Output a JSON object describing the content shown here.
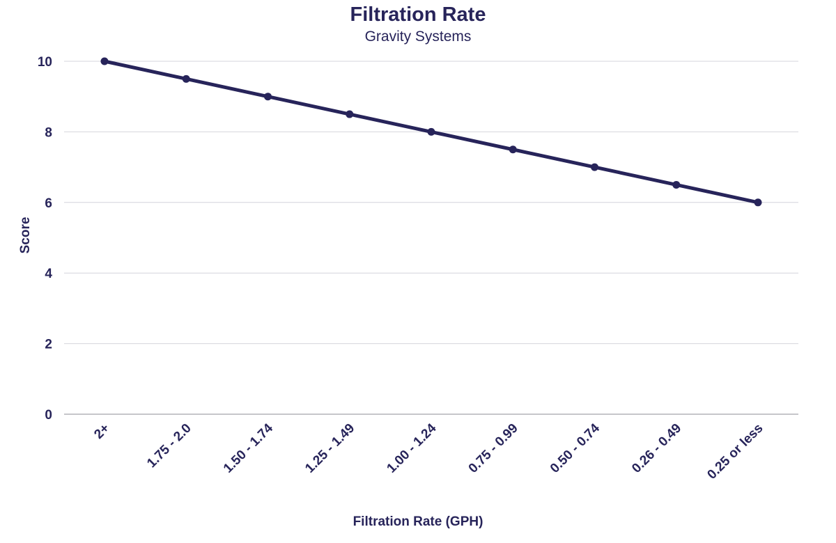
{
  "chart_data": {
    "type": "line",
    "title": "Filtration Rate",
    "subtitle": "Gravity Systems",
    "xlabel": "Filtration Rate (GPH)",
    "ylabel": "Score",
    "categories": [
      "2+",
      "1.75 - 2.0",
      "1.50 - 1.74",
      "1.25 - 1.49",
      "1.00 - 1.24",
      "0.75 - 0.99",
      "0.50 - 0.74",
      "0.26 - 0.49",
      "0.25 or less"
    ],
    "series": [
      {
        "values": [
          10,
          9.5,
          9,
          8.5,
          8,
          7.5,
          7,
          6.5,
          6
        ]
      }
    ],
    "ylim": [
      0,
      10
    ],
    "yticks": [
      0,
      2,
      4,
      6,
      8,
      10
    ],
    "grid": true,
    "legend": "none",
    "colors": {
      "series": "#27245a",
      "grid": "#d4d4dc",
      "baseline": "#8c8c96",
      "text": "#27245a"
    }
  }
}
